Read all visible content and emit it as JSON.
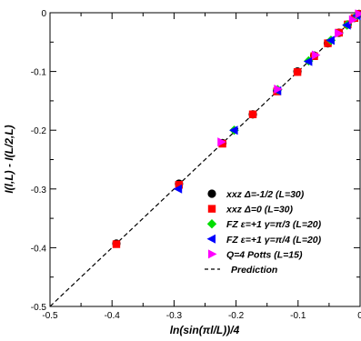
{
  "chart_data": {
    "type": "scatter",
    "xlabel": "ln(sin(πl/L))/4",
    "ylabel": "I(l,L) - I(L/2,L)",
    "xlim": [
      -0.5,
      0
    ],
    "ylim": [
      -0.5,
      0
    ],
    "xticks": [
      -0.5,
      -0.4,
      -0.3,
      -0.2,
      -0.1,
      0
    ],
    "yticks": [
      -0.5,
      -0.4,
      -0.3,
      -0.2,
      -0.1,
      0
    ],
    "xtick_labels": [
      "-0.5",
      "-0.4",
      "-0.3",
      "-0.2",
      "-0.1",
      "0"
    ],
    "ytick_labels": [
      "-0.5",
      "-0.4",
      "-0.3",
      "-0.2",
      "-0.1",
      "0"
    ],
    "grid": false,
    "legend_position": "bottom-right",
    "series": [
      {
        "name": "xxz Δ=-1/2 (L=30)",
        "marker": "circle",
        "color": "#000000",
        "x": [
          -0.393,
          -0.292,
          -0.222,
          -0.173,
          -0.134,
          -0.101,
          -0.074,
          -0.052,
          -0.034,
          -0.02,
          -0.009,
          -0.002
        ],
        "y": [
          -0.393,
          -0.291,
          -0.222,
          -0.173,
          -0.133,
          -0.1,
          -0.073,
          -0.052,
          -0.034,
          -0.02,
          -0.009,
          -0.002
        ]
      },
      {
        "name": "xxz Δ=0 (L=30)",
        "marker": "square",
        "color": "#ff0000",
        "x": [
          -0.393,
          -0.292,
          -0.222,
          -0.173,
          -0.134,
          -0.101,
          -0.074,
          -0.052,
          -0.034,
          -0.02,
          -0.009,
          -0.002
        ],
        "y": [
          -0.394,
          -0.293,
          -0.223,
          -0.173,
          -0.134,
          -0.101,
          -0.074,
          -0.052,
          -0.034,
          -0.02,
          -0.009,
          -0.002
        ]
      },
      {
        "name": "FZ ε=+1 γ=π/3 (L=20)",
        "marker": "diamond",
        "color": "#00dd00",
        "x": [
          -0.203,
          -0.133,
          -0.083,
          -0.047,
          -0.021,
          -0.005
        ],
        "y": [
          -0.2,
          -0.131,
          -0.082,
          -0.047,
          -0.021,
          -0.005
        ]
      },
      {
        "name": "FZ ε=+1 γ=π/4 (L=20)",
        "marker": "triangle-left",
        "color": "#0000ff",
        "x": [
          -0.293,
          -0.203,
          -0.133,
          -0.083,
          -0.047,
          -0.021,
          -0.005
        ],
        "y": [
          -0.3,
          -0.2,
          -0.133,
          -0.083,
          -0.047,
          -0.021,
          -0.005
        ]
      },
      {
        "name": "Q=4 Potts (L=15)",
        "marker": "triangle-right",
        "color": "#ff00ff",
        "x": [
          -0.224,
          -0.133,
          -0.072,
          -0.035,
          -0.012,
          -0.002
        ],
        "y": [
          -0.22,
          -0.13,
          -0.072,
          -0.035,
          -0.012,
          -0.002
        ]
      }
    ],
    "prediction": {
      "name": "Prediction",
      "style": "dashed",
      "color": "#000000",
      "x": [
        -0.5,
        0
      ],
      "y": [
        -0.5,
        0
      ]
    }
  }
}
